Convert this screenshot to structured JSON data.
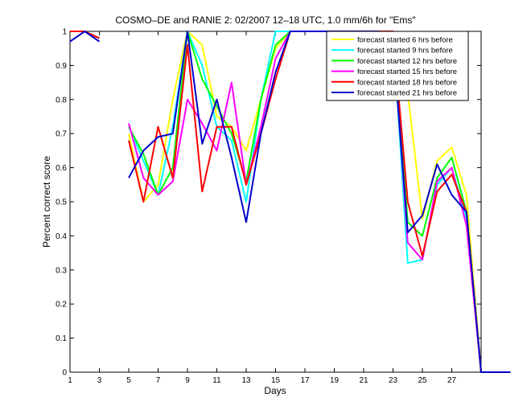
{
  "chart_data": {
    "type": "line",
    "title": "COSMO–DE and RANIE 2: 02/2007 12–18 UTC, 1.0 mm/6h for \"Ems\"",
    "xlabel": "Days",
    "ylabel": "Percent correct score",
    "xlim": [
      1,
      29
    ],
    "ylim": [
      0,
      1
    ],
    "x_ticks": [
      1,
      3,
      5,
      7,
      9,
      11,
      13,
      15,
      17,
      19,
      21,
      23,
      25,
      27
    ],
    "y_ticks": [
      0,
      0.1,
      0.2,
      0.3,
      0.4,
      0.5,
      0.6,
      0.7,
      0.8,
      0.9,
      1
    ],
    "y_tick_labels": [
      "0",
      "0.1",
      "0.2",
      "0.3",
      "0.4",
      "0.5",
      "0.6",
      "0.7",
      "0.8",
      "0.9",
      "1"
    ],
    "grid": false,
    "legend_position": "top-right",
    "series": [
      {
        "name": "forecast started 6 hrs before",
        "color": "#ffff00",
        "points": [
          [
            1,
            1
          ],
          [
            2,
            1
          ],
          [
            3,
            0.98
          ],
          null,
          [
            5,
            0.7
          ],
          [
            6,
            0.5
          ],
          [
            7,
            0.55
          ],
          [
            8,
            0.8
          ],
          [
            9,
            1
          ],
          [
            10,
            0.96
          ],
          [
            11,
            0.75
          ],
          [
            12,
            0.72
          ],
          [
            13,
            0.65
          ],
          [
            14,
            0.8
          ],
          [
            15,
            0.95
          ],
          [
            16,
            1
          ],
          [
            17,
            1
          ],
          [
            18,
            1
          ],
          [
            19,
            1
          ],
          [
            20,
            1
          ],
          [
            21,
            1
          ],
          [
            22,
            1
          ],
          [
            23,
            1
          ],
          [
            24,
            0.82
          ],
          [
            25,
            0.45
          ],
          [
            26,
            0.62
          ],
          [
            27,
            0.66
          ],
          [
            28,
            0.52
          ],
          [
            29,
            0
          ],
          [
            31,
            0
          ]
        ]
      },
      {
        "name": "forecast started 9 hrs before",
        "color": "#00ffff",
        "points": [
          [
            1,
            1
          ],
          [
            2,
            1
          ],
          [
            3,
            0.98
          ],
          null,
          [
            5,
            0.72
          ],
          [
            6,
            0.62
          ],
          [
            7,
            0.52
          ],
          [
            8,
            0.72
          ],
          [
            9,
            1
          ],
          [
            10,
            0.9
          ],
          [
            11,
            0.72
          ],
          [
            12,
            0.68
          ],
          [
            13,
            0.5
          ],
          [
            14,
            0.8
          ],
          [
            15,
            1
          ],
          [
            16,
            1
          ],
          [
            17,
            1
          ],
          [
            18,
            1
          ],
          [
            19,
            1
          ],
          [
            20,
            1
          ],
          [
            21,
            1
          ],
          [
            22,
            1
          ],
          [
            23,
            1
          ],
          [
            24,
            0.32
          ],
          [
            25,
            0.33
          ],
          [
            26,
            0.55
          ],
          [
            27,
            0.6
          ],
          [
            28,
            0.45
          ],
          [
            29,
            0
          ],
          [
            31,
            0
          ]
        ]
      },
      {
        "name": "forecast started 12 hrs before",
        "color": "#00ff00",
        "points": [
          [
            1,
            1
          ],
          [
            2,
            1
          ],
          [
            3,
            0.98
          ],
          null,
          [
            5,
            0.72
          ],
          [
            6,
            0.64
          ],
          [
            7,
            0.52
          ],
          [
            8,
            0.6
          ],
          [
            9,
            1
          ],
          [
            10,
            0.86
          ],
          [
            11,
            0.78
          ],
          [
            12,
            0.7
          ],
          [
            13,
            0.56
          ],
          [
            14,
            0.8
          ],
          [
            15,
            0.96
          ],
          [
            16,
            1
          ],
          [
            17,
            1
          ],
          [
            18,
            1
          ],
          [
            19,
            1
          ],
          [
            20,
            1
          ],
          [
            21,
            1
          ],
          [
            22,
            1
          ],
          [
            23,
            1
          ],
          [
            24,
            0.44
          ],
          [
            25,
            0.4
          ],
          [
            26,
            0.57
          ],
          [
            27,
            0.63
          ],
          [
            28,
            0.47
          ],
          [
            29,
            0
          ],
          [
            31,
            0
          ]
        ]
      },
      {
        "name": "forecast started 15 hrs before",
        "color": "#ff00ff",
        "points": [
          [
            1,
            1
          ],
          [
            2,
            1
          ],
          [
            3,
            0.98
          ],
          null,
          [
            5,
            0.73
          ],
          [
            6,
            0.57
          ],
          [
            7,
            0.52
          ],
          [
            8,
            0.56
          ],
          [
            9,
            0.8
          ],
          [
            10,
            0.73
          ],
          [
            11,
            0.65
          ],
          [
            12,
            0.85
          ],
          [
            13,
            0.55
          ],
          [
            14,
            0.72
          ],
          [
            15,
            0.92
          ],
          [
            16,
            1
          ],
          [
            17,
            1
          ],
          [
            18,
            1
          ],
          [
            19,
            1
          ],
          [
            20,
            1
          ],
          [
            21,
            1
          ],
          [
            22,
            1
          ],
          [
            23,
            1
          ],
          [
            24,
            0.38
          ],
          [
            25,
            0.33
          ],
          [
            26,
            0.56
          ],
          [
            27,
            0.6
          ],
          [
            28,
            0.43
          ],
          [
            29,
            0
          ],
          [
            31,
            0
          ]
        ]
      },
      {
        "name": "forecast started 18 hrs before",
        "color": "#ff0000",
        "points": [
          [
            1,
            1
          ],
          [
            2,
            1
          ],
          [
            3,
            0.98
          ],
          null,
          [
            5,
            0.68
          ],
          [
            6,
            0.5
          ],
          [
            7,
            0.72
          ],
          [
            8,
            0.57
          ],
          [
            9,
            0.96
          ],
          [
            10,
            0.53
          ],
          [
            11,
            0.72
          ],
          [
            12,
            0.72
          ],
          [
            13,
            0.55
          ],
          [
            14,
            0.7
          ],
          [
            15,
            0.86
          ],
          [
            16,
            1
          ],
          [
            17,
            1
          ],
          [
            18,
            1
          ],
          [
            19,
            1
          ],
          [
            20,
            1
          ],
          [
            21,
            1
          ],
          [
            22,
            1
          ],
          [
            23,
            1
          ],
          [
            24,
            0.5
          ],
          [
            25,
            0.34
          ],
          [
            26,
            0.53
          ],
          [
            27,
            0.58
          ],
          [
            28,
            0.47
          ],
          [
            29,
            0
          ],
          [
            31,
            0
          ]
        ]
      },
      {
        "name": "forecast started 21 hrs before",
        "color": "#0000cc",
        "points": [
          [
            1,
            0.97
          ],
          [
            2,
            1
          ],
          [
            3,
            0.97
          ],
          null,
          [
            5,
            0.57
          ],
          [
            6,
            0.65
          ],
          [
            7,
            0.69
          ],
          [
            8,
            0.7
          ],
          [
            9,
            1
          ],
          [
            10,
            0.67
          ],
          [
            11,
            0.8
          ],
          [
            12,
            0.63
          ],
          [
            13,
            0.44
          ],
          [
            14,
            0.7
          ],
          [
            15,
            0.88
          ],
          [
            16,
            1
          ],
          [
            17,
            1
          ],
          [
            18,
            1
          ],
          [
            19,
            1
          ],
          [
            20,
            1
          ],
          [
            21,
            1
          ],
          [
            22,
            1
          ],
          [
            23,
            0.97
          ],
          [
            24,
            0.41
          ],
          [
            25,
            0.46
          ],
          [
            26,
            0.61
          ],
          [
            27,
            0.52
          ],
          [
            28,
            0.47
          ],
          [
            29,
            0
          ],
          [
            31,
            0
          ]
        ]
      }
    ]
  }
}
